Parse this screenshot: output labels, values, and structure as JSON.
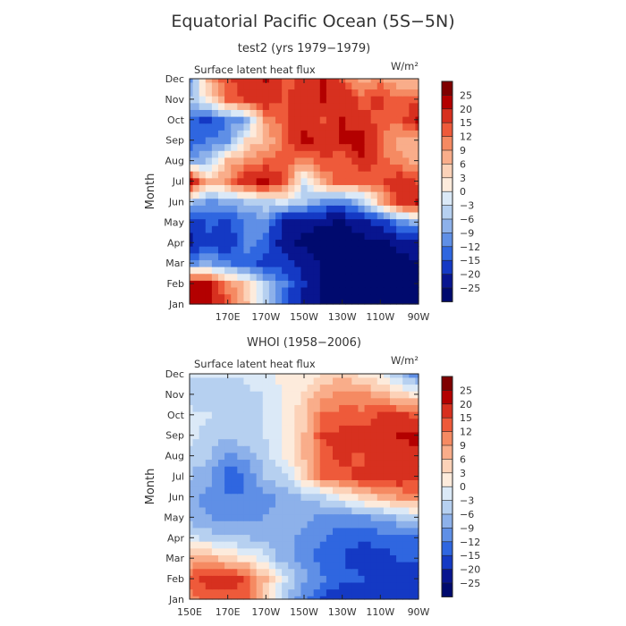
{
  "page": {
    "title": "Equatorial Pacific Ocean (5S−5N)"
  },
  "colorbar": {
    "levels": [
      "25",
      "20",
      "15",
      "12",
      "9",
      "6",
      "3",
      "0",
      "−3",
      "−6",
      "−9",
      "−12",
      "−15",
      "−20",
      "−25"
    ],
    "colors": [
      "#7f0000",
      "#b30000",
      "#d7301f",
      "#ee5a3a",
      "#f58a62",
      "#f9ad8a",
      "#fcd2b8",
      "#fdebdc",
      "#dbe9f7",
      "#b6d0f0",
      "#8db1ea",
      "#5f8fe6",
      "#2f66e0",
      "#1439c4",
      "#08158f",
      "#000a6e"
    ]
  },
  "chart_data": [
    {
      "type": "heatmap",
      "title": "test2 (yrs 1979−1979)",
      "variable": "Surface latent heat flux",
      "units": "W/m²",
      "ylabel": "Month",
      "yticks": [
        "Dec",
        "Nov",
        "Oct",
        "Sep",
        "Aug",
        "Jul",
        "Jun",
        "May",
        "Apr",
        "Mar",
        "Feb",
        "Jan"
      ],
      "xticks": [
        "170E",
        "170W",
        "150W",
        "130W",
        "110W",
        "90W"
      ],
      "xlim": [
        "150E",
        "90W"
      ],
      "x_lon": [
        150,
        160,
        170,
        180,
        190,
        200,
        210,
        220,
        230,
        240,
        250,
        260,
        270
      ],
      "months": [
        "Jan",
        "Feb",
        "Mar",
        "Apr",
        "May",
        "Jun",
        "Jul",
        "Aug",
        "Sep",
        "Oct",
        "Nov",
        "Dec"
      ],
      "values": [
        [
          24,
          22,
          14,
          6,
          -4,
          -14,
          -22,
          -26,
          -28,
          -28,
          -28,
          -28,
          -28
        ],
        [
          22,
          20,
          10,
          4,
          -6,
          -12,
          -20,
          -26,
          -28,
          -28,
          -28,
          -28,
          -28
        ],
        [
          -10,
          -8,
          -12,
          -14,
          -16,
          -18,
          -22,
          -26,
          -28,
          -28,
          -28,
          -26,
          -26
        ],
        [
          -22,
          -16,
          -18,
          -10,
          -14,
          -24,
          -26,
          -28,
          -28,
          -27,
          -26,
          -24,
          -22
        ],
        [
          -18,
          -14,
          -16,
          -12,
          -10,
          -22,
          -24,
          -24,
          -26,
          -22,
          -18,
          -10,
          -8
        ],
        [
          -6,
          -10,
          -8,
          -6,
          -4,
          -2,
          -6,
          -10,
          -12,
          -6,
          6,
          18,
          20
        ],
        [
          22,
          6,
          10,
          18,
          22,
          14,
          -2,
          8,
          14,
          12,
          14,
          18,
          14
        ],
        [
          -8,
          -6,
          6,
          10,
          12,
          14,
          10,
          14,
          12,
          18,
          14,
          10,
          8
        ],
        [
          -14,
          -12,
          -10,
          4,
          6,
          12,
          22,
          18,
          20,
          24,
          12,
          8,
          6
        ],
        [
          -14,
          -16,
          -12,
          -8,
          10,
          14,
          18,
          14,
          20,
          16,
          14,
          12,
          22
        ],
        [
          -6,
          2,
          12,
          16,
          18,
          14,
          18,
          20,
          18,
          14,
          16,
          12,
          14
        ],
        [
          -10,
          8,
          14,
          18,
          20,
          14,
          16,
          20,
          14,
          8,
          10,
          6,
          6
        ]
      ]
    },
    {
      "type": "heatmap",
      "title": "WHOI (1958−2006)",
      "variable": "Surface latent heat flux",
      "units": "W/m²",
      "ylabel": "Month",
      "yticks": [
        "Dec",
        "Nov",
        "Oct",
        "Sep",
        "Aug",
        "Jul",
        "Jun",
        "May",
        "Apr",
        "Mar",
        "Feb",
        "Jan"
      ],
      "xticks": [
        "150E",
        "170E",
        "170W",
        "150W",
        "130W",
        "110W",
        "90W"
      ],
      "xlim": [
        "150E",
        "90W"
      ],
      "x_lon": [
        150,
        160,
        170,
        180,
        190,
        200,
        210,
        220,
        230,
        240,
        250,
        260,
        270
      ],
      "months": [
        "Jan",
        "Feb",
        "Mar",
        "Apr",
        "May",
        "Jun",
        "Jul",
        "Aug",
        "Sep",
        "Oct",
        "Nov",
        "Dec"
      ],
      "values": [
        [
          10,
          14,
          12,
          12,
          4,
          -6,
          -12,
          -16,
          -18,
          -18,
          -18,
          -18,
          -20
        ],
        [
          14,
          16,
          18,
          14,
          6,
          -2,
          -8,
          -12,
          -14,
          -15,
          -16,
          -16,
          -16
        ],
        [
          6,
          8,
          4,
          2,
          -2,
          -8,
          -10,
          -14,
          -15,
          -16,
          -16,
          -15,
          -15
        ],
        [
          -2,
          -4,
          -6,
          -6,
          -8,
          -8,
          -10,
          -12,
          -14,
          -15,
          -14,
          -14,
          -14
        ],
        [
          -8,
          -9,
          -10,
          -10,
          -9,
          -8,
          -8,
          -10,
          -10,
          -10,
          -8,
          -6,
          -4
        ],
        [
          -8,
          -10,
          -12,
          -12,
          -10,
          -8,
          -6,
          -4,
          0,
          4,
          6,
          9,
          10
        ],
        [
          -6,
          -8,
          -14,
          -12,
          -6,
          -4,
          4,
          12,
          14,
          16,
          18,
          18,
          17
        ],
        [
          -4,
          -6,
          -10,
          -8,
          -4,
          0,
          6,
          14,
          16,
          14,
          18,
          18,
          18
        ],
        [
          -2,
          -4,
          -6,
          -4,
          -3,
          0,
          6,
          15,
          16,
          17,
          18,
          20,
          22
        ],
        [
          -2,
          -3,
          -4,
          -4,
          -3,
          0,
          5,
          12,
          14,
          13,
          15,
          16,
          14
        ],
        [
          -4,
          -5,
          -5,
          -4,
          -3,
          0,
          4,
          8,
          10,
          10,
          8,
          4,
          2
        ],
        [
          -3,
          -3,
          -3,
          -2,
          -1,
          2,
          0,
          4,
          5,
          2,
          0,
          -6,
          -12
        ]
      ]
    }
  ]
}
